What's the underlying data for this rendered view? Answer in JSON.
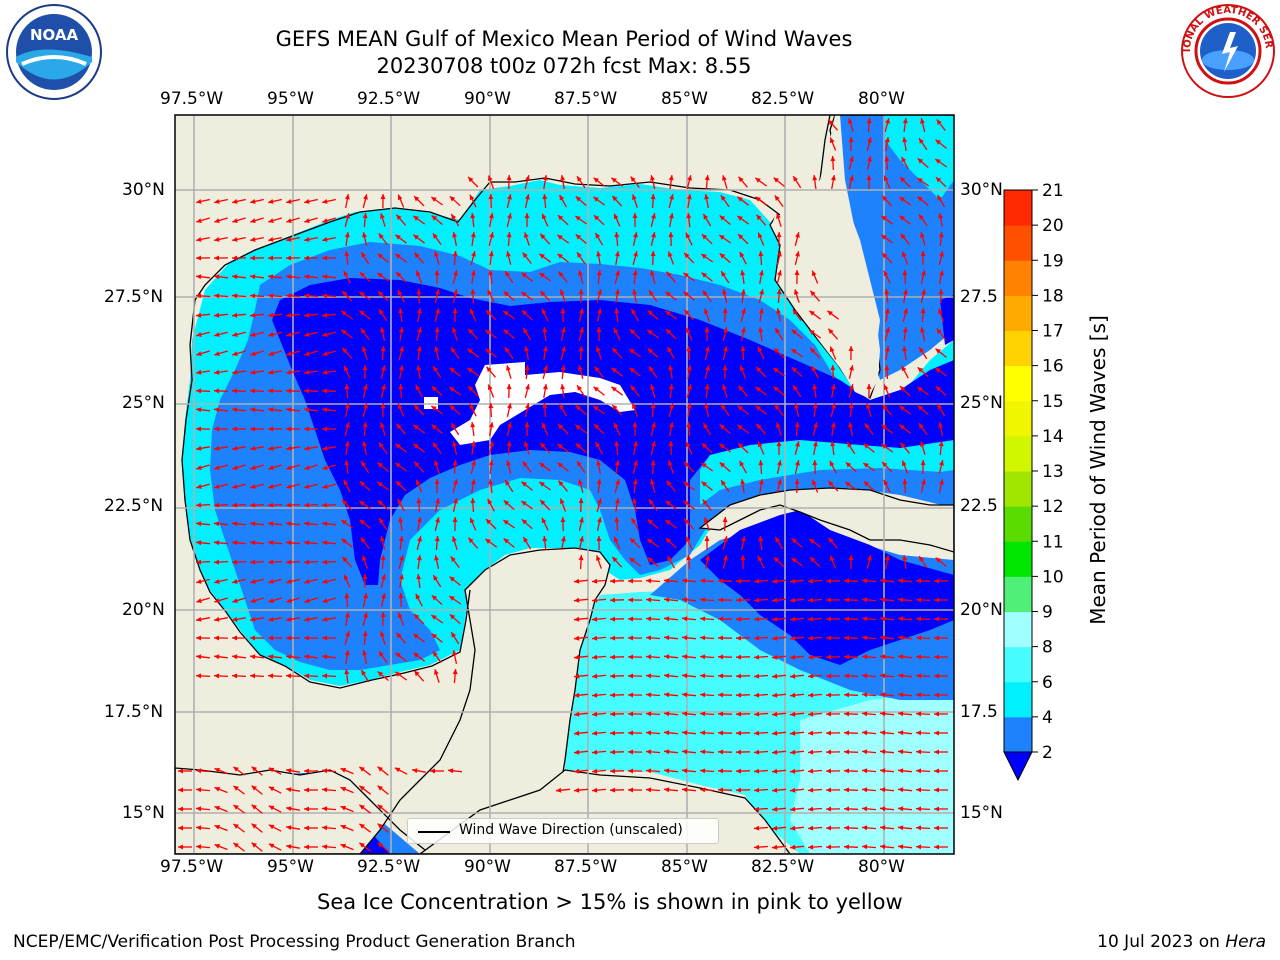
{
  "header": {
    "title_line1": "GEFS MEAN Gulf of Mexico Mean Period of Wind Waves",
    "title_line2": "20230708 t00z 072h fcst   Max: 8.55"
  },
  "map": {
    "top_lon_labels": [
      "97.5°W",
      "95°W",
      "92.5°W",
      "90°W",
      "87.5°W",
      "85°W",
      "82.5°W",
      "80°W"
    ],
    "bottom_lon_labels": [
      "97.5°W",
      "95°W",
      "92.5°W",
      "90°W",
      "87.5°W",
      "85°W",
      "82.5°W",
      "80°W"
    ],
    "left_lat_labels": [
      "30°N",
      "27.5°N",
      "25°N",
      "22.5°N",
      "20°N",
      "17.5°N",
      "15°N"
    ],
    "right_lat_labels": [
      "30°N",
      "27.5",
      "25°N",
      "22.5",
      "20°N",
      "17.5",
      "15°N"
    ],
    "legend_label": "Wind Wave Direction (unscaled)",
    "colors": {
      "land": "#eeedde",
      "level_2_4": "#1e82ff",
      "level_4_6": "#00f0ff",
      "level_6_8": "#46fcff",
      "level_8_9": "#a0ffff",
      "below_2": "#0000ff",
      "arrow": "#ff0000",
      "grid": "#b0b0b0"
    }
  },
  "colorbar": {
    "label": "Mean Period of Wind Waves [s]",
    "ticks": [
      "2",
      "4",
      "6",
      "8",
      "9",
      "10",
      "11",
      "12",
      "13",
      "14",
      "15",
      "16",
      "17",
      "18",
      "19",
      "20",
      "21"
    ],
    "colors": [
      "#0000ff",
      "#1e82ff",
      "#00f0ff",
      "#46fcff",
      "#a0ffff",
      "#50f078",
      "#00e600",
      "#5adc00",
      "#a0e600",
      "#d2f500",
      "#f0f500",
      "#ffff00",
      "#ffd200",
      "#ffaa00",
      "#ff8200",
      "#ff5000",
      "#ff2800",
      "#ff0000"
    ]
  },
  "note": "Sea Ice Concentration > 15% is shown in pink to yellow",
  "footer": {
    "left": "NCEP/EMC/Verification Post Processing Product Generation Branch",
    "right_date": "10 Jul 2023 on ",
    "right_host": "Hera"
  },
  "logos": {
    "noaa_text": "NOAA",
    "nws_text": "NATIONAL WEATHER SERVICE"
  }
}
